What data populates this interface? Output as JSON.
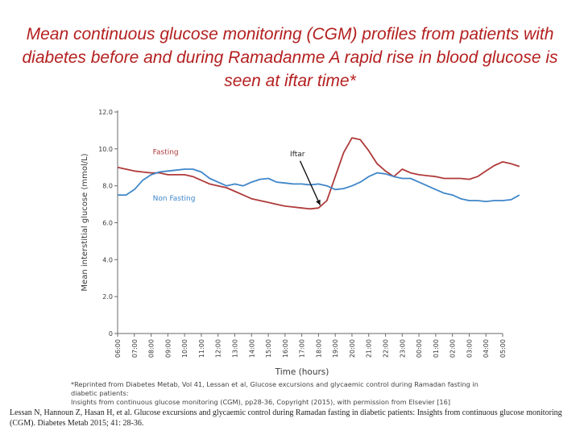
{
  "title": "Mean continuous glucose monitoring (CGM) profiles from patients with diabetes before and during Ramadanme A rapid rise in blood glucose is seen at iftar time*",
  "footnote_line1": "*Reprinted from Diabetes Metab, Vol 41, Lessan et al, Glucose excursions and glycaemic control during Ramadan fasting in diabetic patients:",
  "footnote_line2": "Insights from continuous glucose monitoring (CGM), pp28-36, Copyright (2015), with permission from Elsevier [16]",
  "citation": "Lessan N, Hannoun Z, Hasan H, et al. Glucose excursions and glycaemic control during Ramadan fasting in diabetic patients: Insights from continuous glucose monitoring (CGM). Diabetes Metab 2015; 41: 28-36.",
  "colors": {
    "fasting": "#b03a3a",
    "non_fasting": "#3f86c8",
    "title": "#b42020",
    "axis": "#6a6a6a"
  },
  "chart_data": {
    "type": "line",
    "xlabel": "Time (hours)",
    "ylabel": "Mean interstitial glucose (mmol/L)",
    "ylim": [
      0,
      12
    ],
    "yticks": [
      "0",
      "2.0",
      "4.0",
      "6.0",
      "8.0",
      "10.0",
      "12.0"
    ],
    "categories": [
      "06:00",
      "07:00",
      "08:00",
      "09:00",
      "10:00",
      "11:00",
      "12:00",
      "13:00",
      "14:00",
      "15:00",
      "16:00",
      "17:00",
      "18:00",
      "19:00",
      "20:00",
      "21:00",
      "22:00",
      "23:00",
      "00:00",
      "01:00",
      "02:00",
      "03:00",
      "04:00",
      "05:00"
    ],
    "x": [
      0,
      0.5,
      1,
      1.5,
      2,
      2.5,
      3,
      3.5,
      4,
      4.5,
      5,
      5.5,
      6,
      6.5,
      7,
      7.5,
      8,
      8.5,
      9,
      9.5,
      10,
      10.5,
      11,
      11.5,
      12,
      12.5,
      13,
      13.5,
      14,
      14.5,
      15,
      15.5,
      16,
      16.5,
      17,
      17.5,
      18,
      18.5,
      19,
      19.5,
      20,
      20.5,
      21,
      21.5,
      22,
      22.5,
      23,
      23.5,
      24
    ],
    "series": [
      {
        "name": "Fasting",
        "values": [
          9.0,
          8.9,
          8.8,
          8.75,
          8.7,
          8.7,
          8.6,
          8.6,
          8.6,
          8.5,
          8.3,
          8.1,
          8.0,
          7.9,
          7.7,
          7.5,
          7.3,
          7.2,
          7.1,
          7.0,
          6.9,
          6.85,
          6.8,
          6.75,
          6.8,
          7.2,
          8.5,
          9.8,
          10.6,
          10.5,
          9.9,
          9.2,
          8.8,
          8.5,
          8.9,
          8.7,
          8.6,
          8.55,
          8.5,
          8.4,
          8.4,
          8.4,
          8.35,
          8.5,
          8.8,
          9.1,
          9.3,
          9.2,
          9.05
        ]
      },
      {
        "name": "Non Fasting",
        "values": [
          7.5,
          7.5,
          7.8,
          8.3,
          8.6,
          8.75,
          8.8,
          8.85,
          8.9,
          8.9,
          8.75,
          8.4,
          8.2,
          8.0,
          8.1,
          8.0,
          8.2,
          8.35,
          8.4,
          8.2,
          8.15,
          8.1,
          8.1,
          8.05,
          8.1,
          8.0,
          7.8,
          7.85,
          8.0,
          8.2,
          8.5,
          8.7,
          8.65,
          8.5,
          8.4,
          8.4,
          8.2,
          8.0,
          7.8,
          7.6,
          7.5,
          7.3,
          7.2,
          7.2,
          7.15,
          7.2,
          7.2,
          7.25,
          7.5
        ]
      }
    ],
    "annotations": [
      {
        "text": "Fasting"
      },
      {
        "text": "Non Fasting"
      },
      {
        "text": "Iftar"
      }
    ]
  }
}
